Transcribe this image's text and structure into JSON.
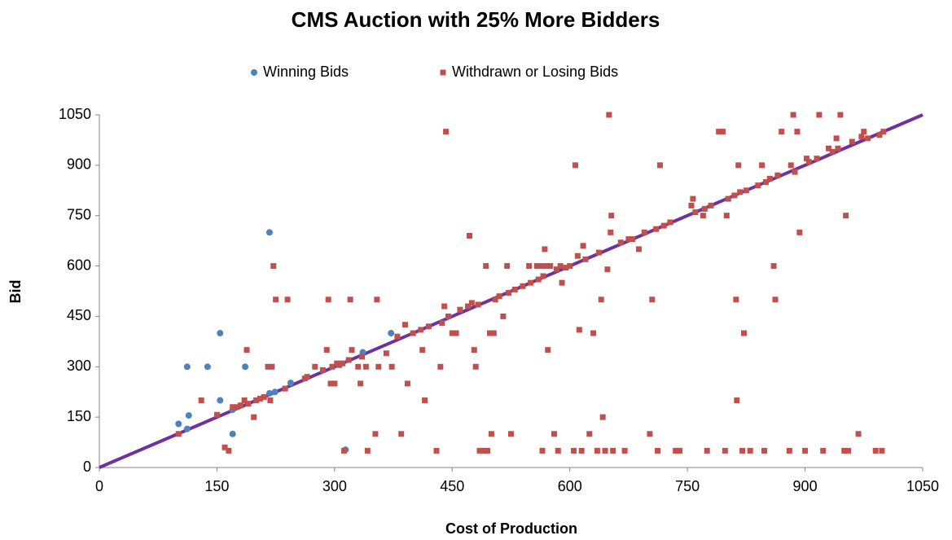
{
  "chart_data": {
    "type": "scatter",
    "title": "CMS Auction with 25% More Bidders",
    "xlabel": "Cost of Production",
    "ylabel": "Bid",
    "xlim": [
      0,
      1050
    ],
    "ylim": [
      0,
      1050
    ],
    "xticks": [
      0,
      150,
      300,
      450,
      600,
      750,
      900,
      1050
    ],
    "yticks": [
      0,
      150,
      300,
      450,
      600,
      750,
      900,
      1050
    ],
    "grid": false,
    "legend": "top",
    "series": [
      {
        "name": "Winning Bids",
        "color": "#4f81bd",
        "marker": "circle",
        "x": [
          101,
          112,
          112,
          114,
          138,
          154,
          154,
          170,
          170,
          186,
          217,
          217,
          224,
          244,
          372,
          336,
          314
        ],
        "values": [
          130,
          115,
          300,
          155,
          300,
          400,
          200,
          172,
          100,
          300,
          700,
          221,
          225,
          252,
          400,
          343,
          53
        ]
      },
      {
        "name": "Withdrawn or Losing Bids",
        "color": "#c0504d",
        "marker": "square",
        "x": [
          101,
          130,
          150,
          160,
          165,
          170,
          175,
          180,
          185,
          188,
          190,
          197,
          200,
          205,
          210,
          215,
          218,
          220,
          222,
          225,
          237,
          240,
          262,
          265,
          275,
          285,
          290,
          292,
          295,
          297,
          300,
          303,
          306,
          310,
          312,
          318,
          320,
          322,
          330,
          333,
          335,
          340,
          342,
          352,
          354,
          356,
          366,
          373,
          380,
          385,
          390,
          393,
          400,
          410,
          412,
          415,
          420,
          430,
          435,
          437,
          440,
          442,
          445,
          450,
          455,
          460,
          470,
          472,
          475,
          478,
          480,
          483,
          485,
          490,
          495,
          493,
          498,
          500,
          503,
          505,
          510,
          515,
          520,
          522,
          525,
          530,
          540,
          548,
          550,
          558,
          560,
          563,
          565,
          566,
          568,
          570,
          572,
          575,
          580,
          583,
          585,
          588,
          590,
          595,
          600,
          605,
          607,
          610,
          612,
          615,
          617,
          620,
          625,
          630,
          635,
          637,
          640,
          642,
          645,
          648,
          650,
          652,
          653,
          655,
          665,
          670,
          675,
          680,
          688,
          695,
          702,
          705,
          710,
          712,
          715,
          720,
          728,
          735,
          740,
          755,
          757,
          760,
          770,
          772,
          775,
          780,
          790,
          795,
          798,
          800,
          802,
          810,
          812,
          813,
          815,
          817,
          820,
          822,
          825,
          830,
          840,
          845,
          848,
          850,
          855,
          860,
          862,
          865,
          870,
          880,
          882,
          885,
          887,
          890,
          893,
          900,
          902,
          905,
          915,
          918,
          923,
          930,
          935,
          940,
          942,
          945,
          950,
          952,
          955,
          960,
          968,
          972,
          975,
          980,
          990,
          995,
          998,
          1000
        ],
        "values": [
          100,
          200,
          157,
          60,
          50,
          180,
          180,
          185,
          200,
          350,
          190,
          150,
          200,
          205,
          210,
          300,
          200,
          300,
          600,
          500,
          235,
          500,
          265,
          270,
          300,
          290,
          350,
          500,
          250,
          300,
          250,
          310,
          305,
          310,
          50,
          320,
          500,
          350,
          300,
          250,
          330,
          300,
          50,
          100,
          500,
          300,
          340,
          300,
          390,
          100,
          425,
          250,
          400,
          410,
          350,
          200,
          420,
          50,
          300,
          430,
          480,
          1000,
          450,
          400,
          400,
          470,
          480,
          690,
          490,
          350,
          300,
          485,
          50,
          50,
          50,
          600,
          400,
          100,
          400,
          500,
          510,
          450,
          600,
          520,
          100,
          530,
          540,
          600,
          550,
          600,
          560,
          600,
          50,
          570,
          650,
          600,
          350,
          600,
          100,
          590,
          50,
          600,
          550,
          595,
          600,
          50,
          900,
          630,
          410,
          50,
          660,
          620,
          100,
          400,
          50,
          640,
          500,
          150,
          50,
          590,
          1050,
          700,
          750,
          50,
          670,
          50,
          680,
          680,
          650,
          700,
          100,
          500,
          710,
          50,
          900,
          720,
          730,
          50,
          50,
          780,
          800,
          760,
          750,
          770,
          50,
          780,
          1000,
          1000,
          50,
          750,
          800,
          810,
          500,
          200,
          900,
          820,
          50,
          400,
          825,
          50,
          840,
          900,
          50,
          850,
          860,
          600,
          500,
          870,
          1000,
          50,
          900,
          1050,
          880,
          1000,
          700,
          50,
          920,
          910,
          920,
          1050,
          50,
          950,
          940,
          980,
          950,
          1050,
          50,
          750,
          50,
          970,
          100,
          985,
          1000,
          980,
          50,
          990,
          50,
          1000
        ]
      }
    ],
    "reference_line": {
      "color": "#7030a0",
      "x": [
        0,
        1050
      ],
      "values": [
        0,
        1050
      ]
    }
  }
}
